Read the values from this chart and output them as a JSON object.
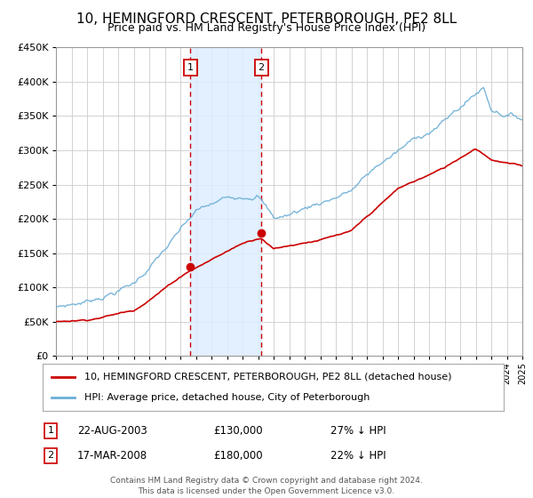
{
  "title": "10, HEMINGFORD CRESCENT, PETERBOROUGH, PE2 8LL",
  "subtitle": "Price paid vs. HM Land Registry's House Price Index (HPI)",
  "footer": "Contains HM Land Registry data © Crown copyright and database right 2024.\nThis data is licensed under the Open Government Licence v3.0.",
  "legend_line1": "10, HEMINGFORD CRESCENT, PETERBOROUGH, PE2 8LL (detached house)",
  "legend_line2": "HPI: Average price, detached house, City of Peterborough",
  "sale1_label": "1",
  "sale1_date": "22-AUG-2003",
  "sale1_price": "£130,000",
  "sale1_hpi": "27% ↓ HPI",
  "sale1_year": 2003.65,
  "sale1_value": 130000,
  "sale2_label": "2",
  "sale2_date": "17-MAR-2008",
  "sale2_price": "£180,000",
  "sale2_hpi": "22% ↓ HPI",
  "sale2_year": 2008.21,
  "sale2_value": 180000,
  "ylim": [
    0,
    450000
  ],
  "yticks": [
    0,
    50000,
    100000,
    150000,
    200000,
    250000,
    300000,
    350000,
    400000,
    450000
  ],
  "xlim_start": 1995,
  "xlim_end": 2025,
  "hpi_color": "#6baed6",
  "price_color": "#cc0000",
  "grid_color": "#cccccc",
  "shade_color": "#ddeeff",
  "vline_color": "#cc0000",
  "background_color": "#ffffff",
  "title_fontsize": 11,
  "subtitle_fontsize": 9
}
